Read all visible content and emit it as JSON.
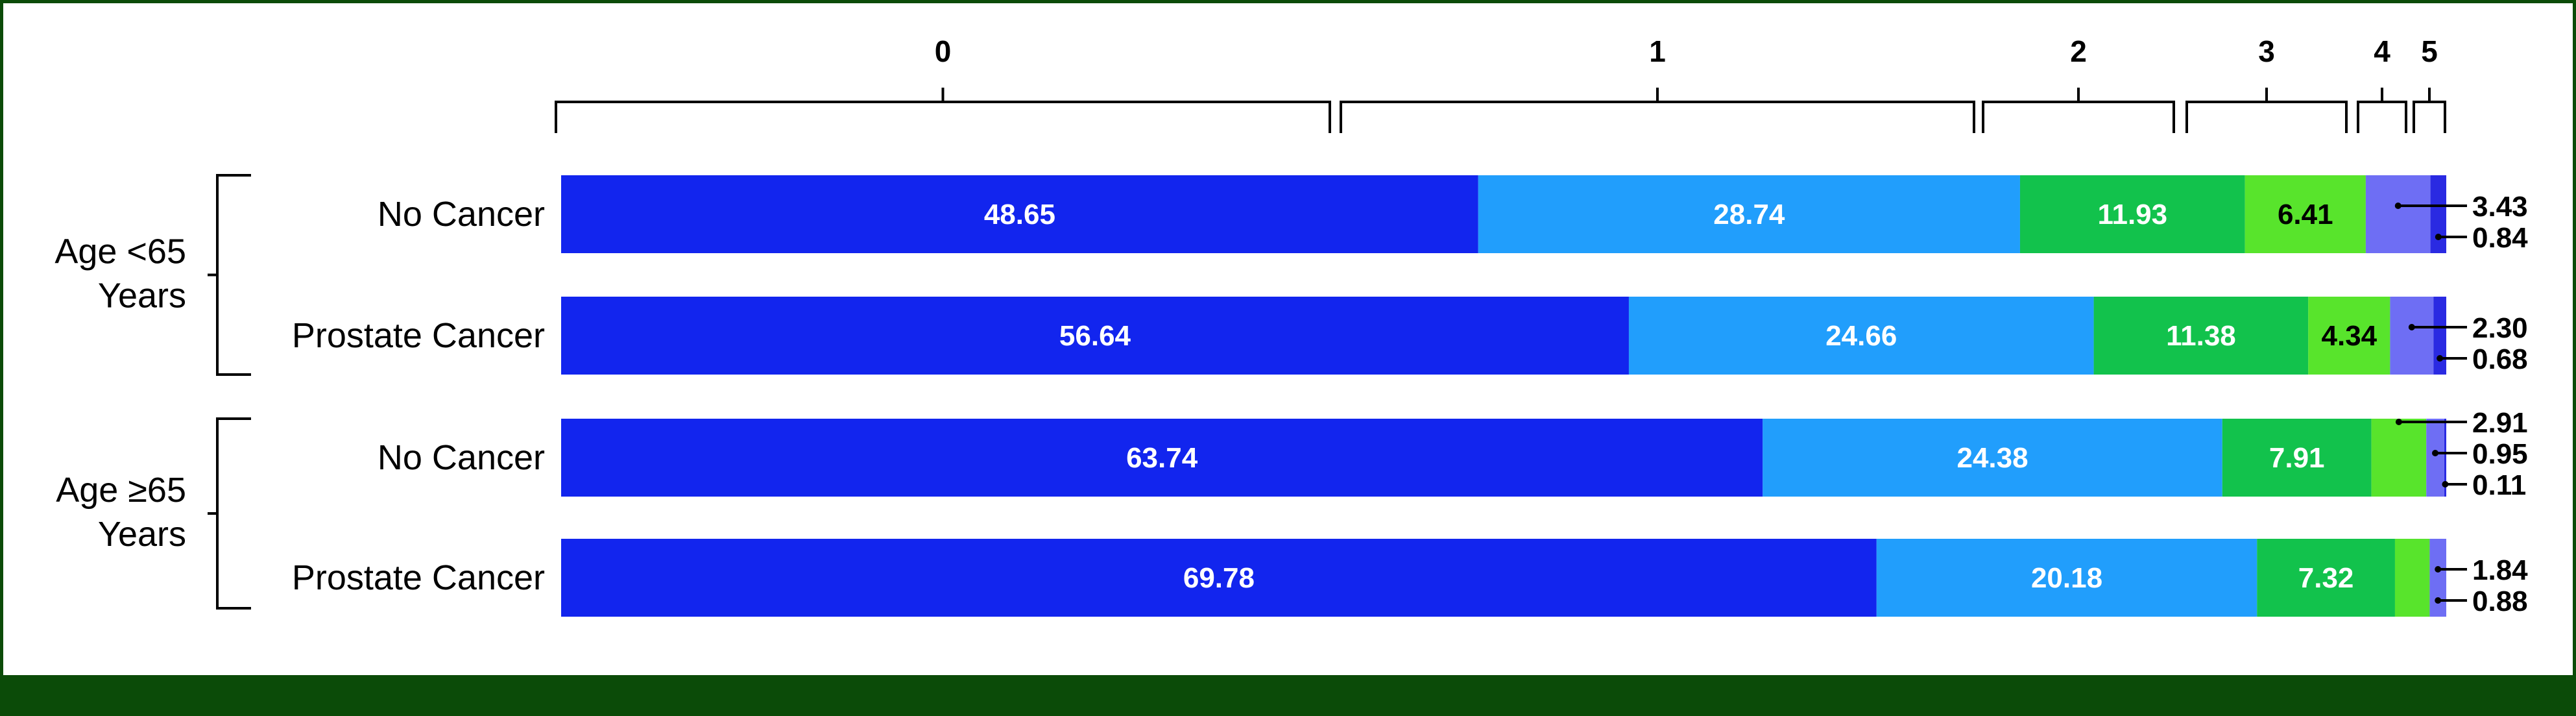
{
  "chart_data": {
    "type": "bar",
    "orientation": "horizontal",
    "stacked": true,
    "xlim": [
      0,
      100
    ],
    "legend": {
      "position": "top",
      "labels": [
        "0",
        "1",
        "2",
        "3",
        "4",
        "5"
      ]
    },
    "groups": [
      {
        "label": "Age <65 Years",
        "label_lines": [
          "Age <65",
          "Years"
        ],
        "categories": [
          "No Cancer",
          "Prostate Cancer"
        ]
      },
      {
        "label": "Age ≥65 Years",
        "label_lines": [
          "Age ≥65",
          "Years"
        ],
        "categories": [
          "No Cancer",
          "Prostate Cancer"
        ]
      }
    ],
    "categories": [
      "No Cancer",
      "Prostate Cancer",
      "No Cancer",
      "Prostate Cancer"
    ],
    "series": [
      {
        "name": "0",
        "color": "#1225ee",
        "values": [
          48.65,
          56.64,
          63.74,
          69.78
        ]
      },
      {
        "name": "1",
        "color": "#219efc",
        "values": [
          28.74,
          24.66,
          24.38,
          20.18
        ]
      },
      {
        "name": "2",
        "color": "#12c24c",
        "values": [
          11.93,
          11.38,
          7.91,
          7.32
        ]
      },
      {
        "name": "3",
        "color": "#58e42c",
        "values": [
          6.41,
          4.34,
          2.91,
          1.84
        ]
      },
      {
        "name": "4",
        "color": "#6e6ef4",
        "values": [
          3.43,
          2.3,
          0.95,
          0.88
        ]
      },
      {
        "name": "5",
        "color": "#2a2ae2",
        "values": [
          0.84,
          0.68,
          0.11,
          null
        ]
      }
    ],
    "bar_labels": [
      [
        "48.65",
        "28.74",
        "11.93",
        "6.41"
      ],
      [
        "56.64",
        "24.66",
        "11.38",
        "4.34"
      ],
      [
        "63.74",
        "24.38",
        "7.91"
      ],
      [
        "69.78",
        "20.18",
        "7.32"
      ]
    ],
    "callouts": [
      [
        "3.43",
        "0.84"
      ],
      [
        "2.30",
        "0.68"
      ],
      [
        "2.91",
        "0.95",
        "0.11"
      ],
      [
        "1.84",
        "0.88"
      ]
    ]
  }
}
